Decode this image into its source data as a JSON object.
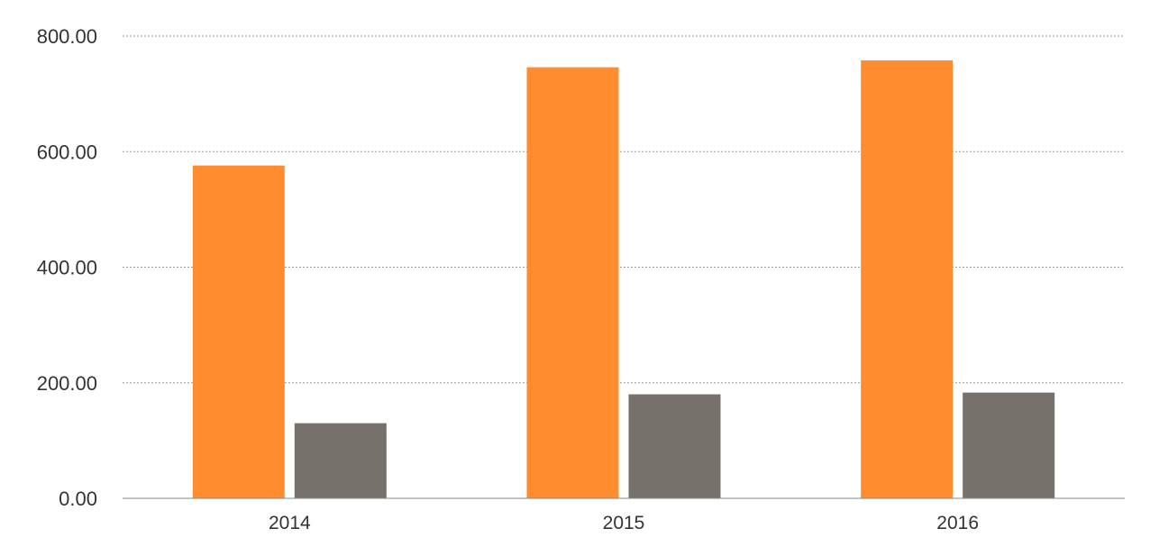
{
  "chart_data": {
    "type": "bar",
    "title": "",
    "xlabel": "",
    "ylabel": "",
    "categories": [
      "2014",
      "2015",
      "2016"
    ],
    "series": [
      {
        "color": "#FF8C2E",
        "values": [
          576,
          746,
          758
        ]
      },
      {
        "color": "#77716C",
        "values": [
          130,
          180,
          183
        ]
      }
    ],
    "ylim": [
      0,
      800
    ],
    "yticks": [
      0,
      200,
      400,
      600,
      800
    ],
    "ytick_labels": [
      "0.00",
      "200.00",
      "400.00",
      "600.00",
      "800.00"
    ],
    "grid": true,
    "legend": "none"
  }
}
